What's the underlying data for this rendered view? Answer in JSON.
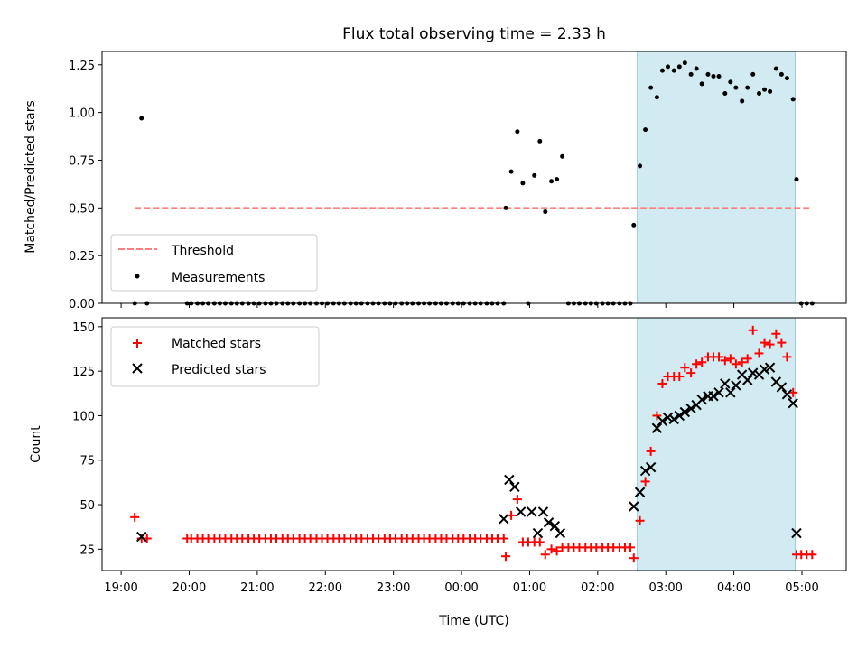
{
  "chart_data": [
    {
      "type": "scatter",
      "title": "Flux total observing time = 2.33 h",
      "xlabel": "",
      "ylabel": "Matched/Predicted stars",
      "ylim": [
        0,
        1.32
      ],
      "yticks": [
        0.0,
        0.25,
        0.5,
        0.75,
        1.0,
        1.25
      ],
      "ytick_labels": [
        "0.00",
        "0.25",
        "0.50",
        "0.75",
        "1.00",
        "1.25"
      ],
      "xlim_hours": [
        18.72,
        29.65
      ],
      "highlight_span_hours": [
        26.58,
        28.9
      ],
      "highlight_color": "#add8e6",
      "legend": {
        "location": "lower left",
        "entries": [
          {
            "label": "Threshold",
            "style": "dashed-line",
            "color": "#ff7f7f"
          },
          {
            "label": "Measurements",
            "style": "dot",
            "color": "#000000"
          }
        ]
      },
      "threshold": {
        "value": 0.5,
        "x_range_hours": [
          19.2,
          29.15
        ],
        "color": "#ff7f7f"
      },
      "series": [
        {
          "name": "Measurements",
          "color": "#000000",
          "x_hours": [
            19.2,
            19.3,
            19.38,
            19.97,
            20.03,
            20.12,
            20.2,
            20.28,
            20.37,
            20.45,
            20.53,
            20.62,
            20.7,
            20.78,
            20.87,
            20.95,
            21.03,
            21.12,
            21.2,
            21.28,
            21.37,
            21.45,
            21.53,
            21.62,
            21.7,
            21.78,
            21.87,
            21.95,
            22.03,
            22.12,
            22.2,
            22.28,
            22.37,
            22.45,
            22.53,
            22.62,
            22.7,
            22.78,
            22.87,
            22.95,
            23.03,
            23.12,
            23.2,
            23.28,
            23.37,
            23.45,
            23.53,
            23.62,
            23.7,
            23.78,
            23.87,
            23.95,
            24.03,
            24.12,
            24.2,
            24.28,
            24.37,
            24.45,
            24.53,
            24.62,
            24.65,
            24.73,
            24.82,
            24.9,
            24.98,
            25.07,
            25.15,
            25.23,
            25.32,
            25.4,
            25.48,
            25.57,
            25.65,
            25.73,
            25.82,
            25.9,
            25.98,
            26.07,
            26.15,
            26.23,
            26.32,
            26.4,
            26.48,
            26.53,
            26.62,
            26.7,
            26.78,
            26.87,
            26.95,
            27.03,
            27.12,
            27.2,
            27.28,
            27.37,
            27.45,
            27.53,
            27.62,
            27.7,
            27.78,
            27.87,
            27.95,
            28.03,
            28.12,
            28.2,
            28.28,
            28.37,
            28.45,
            28.53,
            28.62,
            28.7,
            28.78,
            28.87,
            28.92,
            28.99,
            29.07,
            29.15
          ],
          "y": [
            0.0,
            0.97,
            0.0,
            0.0,
            0.0,
            0.0,
            0.0,
            0.0,
            0.0,
            0.0,
            0.0,
            0.0,
            0.0,
            0.0,
            0.0,
            0.0,
            0.0,
            0.0,
            0.0,
            0.0,
            0.0,
            0.0,
            0.0,
            0.0,
            0.0,
            0.0,
            0.0,
            0.0,
            0.0,
            0.0,
            0.0,
            0.0,
            0.0,
            0.0,
            0.0,
            0.0,
            0.0,
            0.0,
            0.0,
            0.0,
            0.0,
            0.0,
            0.0,
            0.0,
            0.0,
            0.0,
            0.0,
            0.0,
            0.0,
            0.0,
            0.0,
            0.0,
            0.0,
            0.0,
            0.0,
            0.0,
            0.0,
            0.0,
            0.0,
            0.0,
            0.5,
            0.69,
            0.9,
            0.63,
            0.0,
            0.67,
            0.85,
            0.48,
            0.64,
            0.65,
            0.77,
            0.0,
            0.0,
            0.0,
            0.0,
            0.0,
            0.0,
            0.0,
            0.0,
            0.0,
            0.0,
            0.0,
            0.0,
            0.41,
            0.72,
            0.91,
            1.13,
            1.08,
            1.22,
            1.24,
            1.22,
            1.24,
            1.26,
            1.2,
            1.23,
            1.15,
            1.2,
            1.19,
            1.19,
            1.1,
            1.16,
            1.13,
            1.06,
            1.13,
            1.2,
            1.1,
            1.12,
            1.11,
            1.23,
            1.2,
            1.18,
            1.07,
            0.65,
            0.0,
            0.0,
            0.0
          ]
        }
      ]
    },
    {
      "type": "scatter",
      "title": "",
      "xlabel": "Time (UTC)",
      "ylabel": "Count",
      "ylim": [
        13,
        155
      ],
      "yticks": [
        25,
        50,
        75,
        100,
        125,
        150
      ],
      "ytick_labels": [
        "25",
        "50",
        "75",
        "100",
        "125",
        "150"
      ],
      "xlim_hours": [
        18.72,
        29.65
      ],
      "xticks_hours": [
        19,
        20,
        21,
        22,
        23,
        24,
        25,
        26,
        27,
        28,
        29
      ],
      "xtick_labels": [
        "19:00",
        "20:00",
        "21:00",
        "22:00",
        "23:00",
        "00:00",
        "01:00",
        "02:00",
        "03:00",
        "04:00",
        "05:00"
      ],
      "highlight_span_hours": [
        26.58,
        28.9
      ],
      "highlight_color": "#add8e6",
      "legend": {
        "location": "upper left",
        "entries": [
          {
            "label": "Matched stars",
            "style": "plus",
            "color": "#ff0000"
          },
          {
            "label": "Predicted stars",
            "style": "x",
            "color": "#000000"
          }
        ]
      },
      "series": [
        {
          "name": "Matched stars",
          "marker": "plus",
          "color": "#ff0000",
          "x_hours": [
            19.2,
            19.3,
            19.38,
            19.97,
            20.03,
            20.12,
            20.2,
            20.28,
            20.37,
            20.45,
            20.53,
            20.62,
            20.7,
            20.78,
            20.87,
            20.95,
            21.03,
            21.12,
            21.2,
            21.28,
            21.37,
            21.45,
            21.53,
            21.62,
            21.7,
            21.78,
            21.87,
            21.95,
            22.03,
            22.12,
            22.2,
            22.28,
            22.37,
            22.45,
            22.53,
            22.62,
            22.7,
            22.78,
            22.87,
            22.95,
            23.03,
            23.12,
            23.2,
            23.28,
            23.37,
            23.45,
            23.53,
            23.62,
            23.7,
            23.78,
            23.87,
            23.95,
            24.03,
            24.12,
            24.2,
            24.28,
            24.37,
            24.45,
            24.53,
            24.62,
            24.65,
            24.73,
            24.82,
            24.9,
            24.98,
            25.07,
            25.15,
            25.23,
            25.32,
            25.4,
            25.48,
            25.57,
            25.65,
            25.73,
            25.82,
            25.9,
            25.98,
            26.07,
            26.15,
            26.23,
            26.32,
            26.4,
            26.48,
            26.53,
            26.62,
            26.7,
            26.78,
            26.87,
            26.95,
            27.03,
            27.12,
            27.2,
            27.28,
            27.37,
            27.45,
            27.53,
            27.62,
            27.7,
            27.78,
            27.87,
            27.95,
            28.03,
            28.12,
            28.2,
            28.28,
            28.37,
            28.45,
            28.53,
            28.62,
            28.7,
            28.78,
            28.87,
            28.92,
            28.99,
            29.07,
            29.15
          ],
          "y": [
            43,
            31,
            31,
            31,
            31,
            31,
            31,
            31,
            31,
            31,
            31,
            31,
            31,
            31,
            31,
            31,
            31,
            31,
            31,
            31,
            31,
            31,
            31,
            31,
            31,
            31,
            31,
            31,
            31,
            31,
            31,
            31,
            31,
            31,
            31,
            31,
            31,
            31,
            31,
            31,
            31,
            31,
            31,
            31,
            31,
            31,
            31,
            31,
            31,
            31,
            31,
            31,
            31,
            31,
            31,
            31,
            31,
            31,
            31,
            31,
            21,
            44,
            53,
            29,
            29,
            29,
            29,
            22,
            25,
            24,
            26,
            26,
            26,
            26,
            26,
            26,
            26,
            26,
            26,
            26,
            26,
            26,
            26,
            20,
            41,
            63,
            80,
            100,
            118,
            122,
            122,
            122,
            127,
            124,
            129,
            130,
            133,
            133,
            133,
            131,
            132,
            129,
            130,
            132,
            148,
            135,
            141,
            140,
            146,
            141,
            133,
            113,
            22,
            22,
            22,
            22
          ]
        },
        {
          "name": "Predicted stars",
          "marker": "x",
          "color": "#000000",
          "x_hours": [
            19.3,
            24.62,
            24.7,
            24.78,
            24.87,
            25.03,
            25.12,
            25.2,
            25.28,
            25.37,
            25.45,
            26.53,
            26.62,
            26.7,
            26.78,
            26.87,
            26.95,
            27.03,
            27.12,
            27.2,
            27.28,
            27.37,
            27.45,
            27.53,
            27.62,
            27.7,
            27.78,
            27.87,
            27.95,
            28.03,
            28.12,
            28.2,
            28.28,
            28.37,
            28.45,
            28.53,
            28.62,
            28.7,
            28.78,
            28.87,
            28.92
          ],
          "y": [
            32,
            42,
            64,
            60,
            46,
            46,
            34,
            46,
            40,
            38,
            34,
            49,
            57,
            69,
            71,
            93,
            97,
            99,
            98,
            100,
            102,
            104,
            106,
            109,
            111,
            111,
            113,
            118,
            113,
            117,
            123,
            120,
            124,
            123,
            126,
            127,
            119,
            116,
            112,
            107,
            34
          ]
        }
      ]
    }
  ]
}
